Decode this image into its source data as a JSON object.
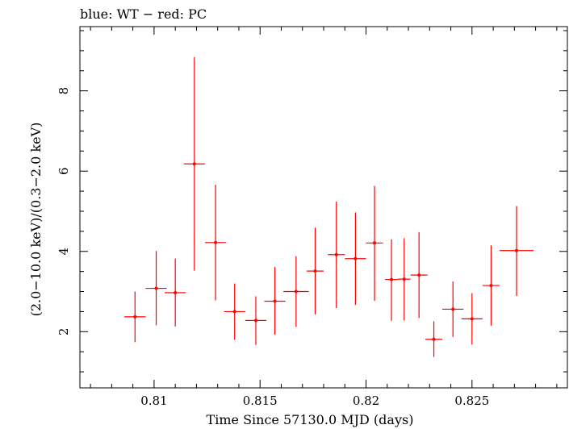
{
  "chart_data": {
    "type": "scatter",
    "title": "blue: WT − red: PC",
    "xlabel": "Time Since 57130.0 MJD (days)",
    "ylabel": "(2.0−10.0 keV)/(0.3−2.0 keV)",
    "xlim": [
      0.8065,
      0.8295
    ],
    "ylim": [
      0.6,
      9.6
    ],
    "xticks": [
      0.81,
      0.815,
      0.82,
      0.825
    ],
    "xtick_labels": [
      "0.81",
      "0.815",
      "0.82",
      "0.825"
    ],
    "yticks": [
      2,
      4,
      6,
      8
    ],
    "ytick_labels": [
      "2",
      "4",
      "6",
      "8"
    ],
    "grid": false,
    "colors": {
      "series": "#ff0000",
      "axes": "#000000"
    },
    "series": [
      {
        "x": [
          0.8091,
          0.8101,
          0.811,
          0.8119,
          0.8129,
          0.8138,
          0.8148,
          0.8157,
          0.8167,
          0.8176,
          0.8186,
          0.8195,
          0.8204,
          0.8212,
          0.8218,
          0.8225,
          0.8232,
          0.8241,
          0.825,
          0.8259,
          0.8271
        ],
        "xerr": [
          0.0005,
          0.0005,
          0.0005,
          0.0005,
          0.0005,
          0.0005,
          0.0005,
          0.0005,
          0.0006,
          0.0004,
          0.0004,
          0.0005,
          0.0004,
          0.0003,
          0.0003,
          0.0004,
          0.0004,
          0.0005,
          0.0005,
          0.0004,
          0.0008
        ],
        "y": [
          2.37,
          3.08,
          2.97,
          6.18,
          4.22,
          2.5,
          2.28,
          2.76,
          3.0,
          3.51,
          3.92,
          3.82,
          4.21,
          3.3,
          3.31,
          3.41,
          1.81,
          2.56,
          2.32,
          3.15,
          4.02
        ],
        "ylo": [
          1.74,
          2.16,
          2.13,
          3.52,
          2.78,
          1.8,
          1.67,
          1.93,
          2.12,
          2.43,
          2.59,
          2.67,
          2.77,
          2.27,
          2.28,
          2.34,
          1.37,
          1.87,
          1.68,
          2.15,
          2.89
        ],
        "yhi": [
          3.0,
          4.01,
          3.82,
          8.84,
          5.66,
          3.2,
          2.88,
          3.61,
          3.88,
          4.59,
          5.24,
          4.97,
          5.63,
          4.3,
          4.33,
          4.48,
          2.26,
          3.25,
          2.96,
          4.15,
          5.13
        ]
      }
    ]
  }
}
